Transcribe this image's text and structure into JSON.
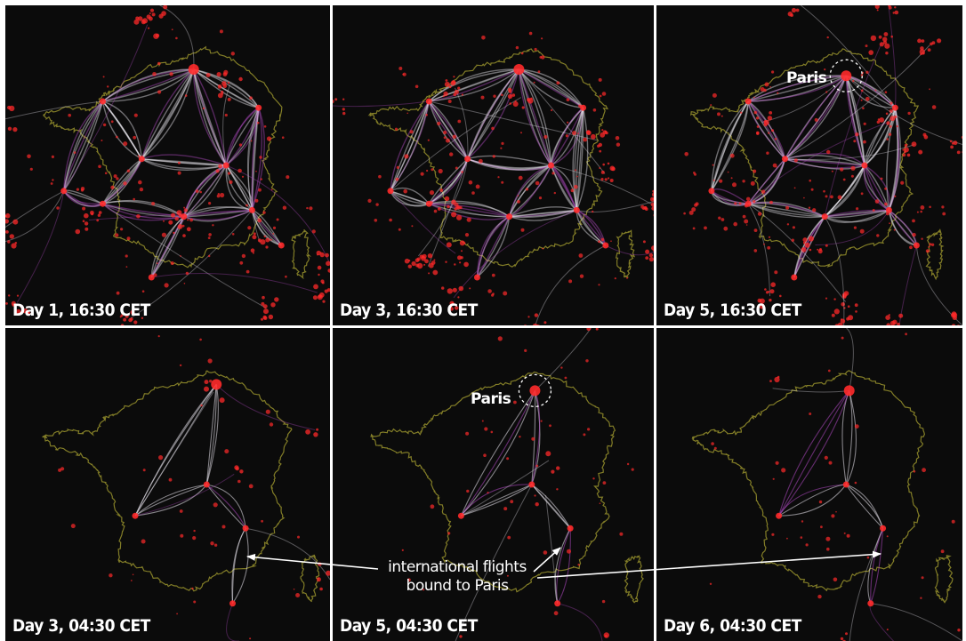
{
  "panels": [
    {
      "caption": "Day 1, 16:30 CET",
      "label": ""
    },
    {
      "caption": "Day 3, 16:30 CET",
      "label": ""
    },
    {
      "caption": "Day 5, 16:30 CET",
      "label": "Paris"
    },
    {
      "caption": "Day 3, 04:30 CET",
      "label": ""
    },
    {
      "caption": "Day 5, 04:30 CET",
      "label": "Paris"
    },
    {
      "caption": "Day 6, 04:30 CET",
      "label": ""
    }
  ],
  "annotation": {
    "line1": "international flights",
    "line2": "bound to Paris"
  },
  "colors": {
    "background": "#0b0b0b",
    "border_outline": "#8f8a2a",
    "edge_bundle": "#e9e6ee",
    "edge_tint": "#b24bc4",
    "node": "#ff2a2a",
    "text": "#ffffff"
  }
}
